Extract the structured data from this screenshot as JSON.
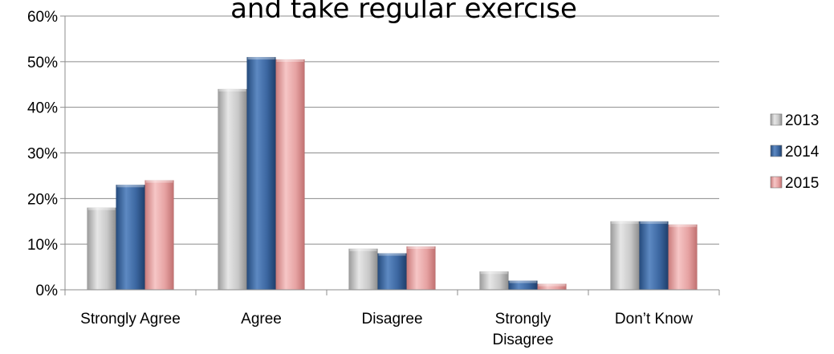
{
  "chart_data": {
    "type": "bar",
    "title": "and take regular exercise",
    "categories": [
      "Strongly Agree",
      "Agree",
      "Disagree",
      "Strongly Disagree",
      "Don’t Know"
    ],
    "category_lines": [
      [
        "Strongly Agree"
      ],
      [
        "Agree"
      ],
      [
        "Disagree"
      ],
      [
        "Strongly",
        "Disagree"
      ],
      [
        "Don’t Know"
      ]
    ],
    "series": [
      {
        "name": "2013",
        "values": [
          18,
          44,
          9,
          4,
          15
        ]
      },
      {
        "name": "2014",
        "values": [
          23,
          51,
          8,
          2,
          15
        ]
      },
      {
        "name": "2015",
        "values": [
          24,
          50.5,
          9.5,
          1.3,
          14.3
        ]
      }
    ],
    "ylim": [
      0,
      60
    ],
    "yticks": [
      0,
      10,
      20,
      30,
      40,
      50,
      60
    ],
    "ytick_labels": [
      "0%",
      "10%",
      "20%",
      "30%",
      "40%",
      "50%",
      "60%"
    ],
    "grid": true,
    "legend": "right",
    "colors": {
      "2013": "#c4c4c4",
      "2014": "#3e6aa3",
      "2015": "#e7a3a3"
    }
  }
}
